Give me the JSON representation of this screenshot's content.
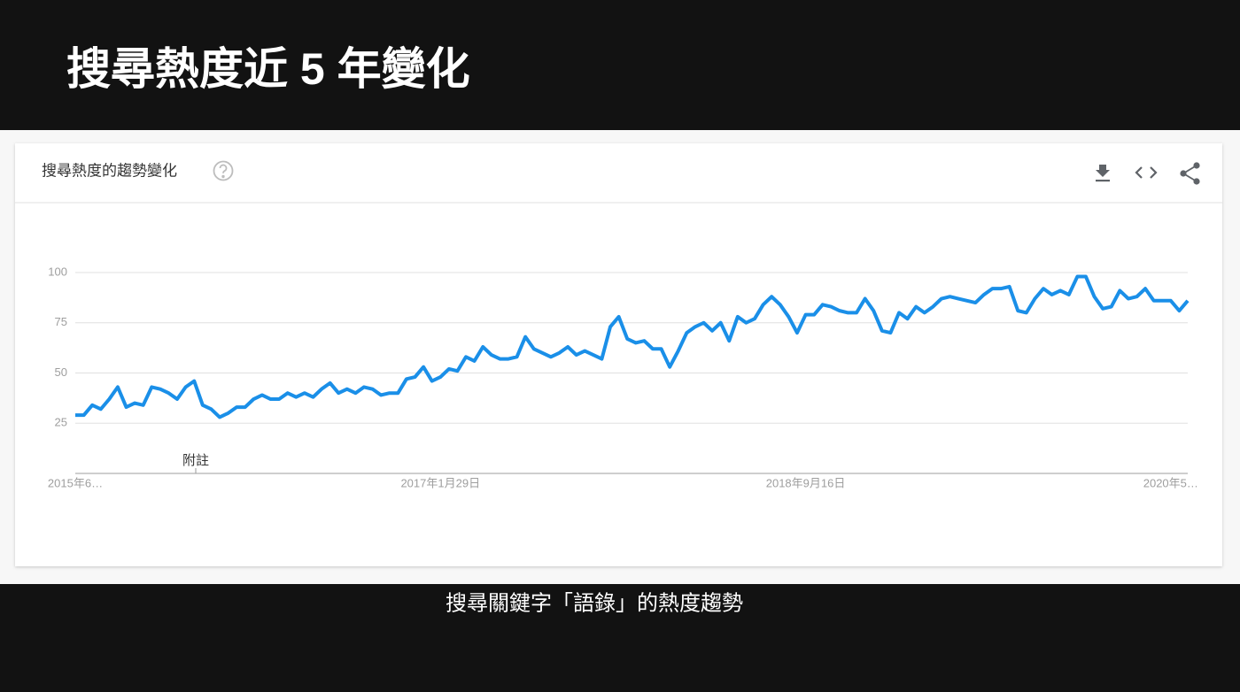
{
  "header": {
    "title": "搜尋熱度近 5 年變化"
  },
  "card": {
    "title": "搜尋熱度的趨勢變化"
  },
  "chart_data": {
    "type": "line",
    "categories": [
      "2015年6…",
      null,
      null,
      null,
      null,
      null,
      null,
      null,
      null,
      null,
      null,
      null,
      null,
      null,
      null,
      null,
      null,
      null,
      null,
      null,
      null,
      null,
      null,
      null,
      null,
      null,
      null,
      null,
      null,
      null,
      null,
      null,
      null,
      null,
      null,
      null,
      null,
      null,
      null,
      null,
      null,
      null,
      null,
      "2017年1月29日",
      null,
      null,
      null,
      null,
      null,
      null,
      null,
      null,
      null,
      null,
      null,
      null,
      null,
      null,
      null,
      null,
      null,
      null,
      null,
      null,
      null,
      null,
      null,
      null,
      null,
      null,
      null,
      null,
      null,
      null,
      null,
      null,
      null,
      null,
      null,
      null,
      null,
      null,
      null,
      null,
      null,
      null,
      "2018年9月16日",
      null,
      null,
      null,
      null,
      null,
      null,
      null,
      null,
      null,
      null,
      null,
      null,
      null,
      null,
      null,
      null,
      null,
      null,
      null,
      null,
      null,
      null,
      null,
      null,
      null,
      null,
      null,
      null,
      null,
      null,
      null,
      null,
      null,
      null,
      null,
      null,
      null,
      null,
      null,
      null,
      null,
      null,
      "2020年5…",
      null,
      null
    ],
    "values": [
      29,
      29,
      34,
      32,
      37,
      43,
      33,
      35,
      34,
      43,
      42,
      40,
      37,
      43,
      46,
      34,
      32,
      28,
      30,
      33,
      33,
      37,
      39,
      37,
      37,
      40,
      38,
      40,
      38,
      42,
      45,
      40,
      42,
      40,
      43,
      42,
      39,
      40,
      40,
      47,
      48,
      53,
      46,
      48,
      52,
      51,
      58,
      56,
      63,
      59,
      57,
      57,
      58,
      68,
      62,
      60,
      58,
      60,
      63,
      59,
      61,
      59,
      57,
      73,
      78,
      67,
      65,
      66,
      62,
      62,
      53,
      61,
      70,
      73,
      75,
      71,
      75,
      66,
      78,
      75,
      77,
      84,
      88,
      84,
      78,
      70,
      79,
      79,
      84,
      83,
      81,
      80,
      80,
      87,
      81,
      71,
      70,
      80,
      77,
      83,
      80,
      83,
      87,
      88,
      87,
      86,
      85,
      89,
      92,
      92,
      93,
      81,
      80,
      87,
      92,
      89,
      91,
      89,
      98,
      98,
      88,
      82,
      83,
      91,
      87,
      88,
      92,
      86,
      86,
      86,
      81,
      86
    ],
    "color": "#1a8fe8",
    "ylim": [
      0,
      100
    ],
    "yticks": [
      25,
      50,
      75,
      100
    ],
    "grid": true,
    "annotation": "附註"
  },
  "caption": "搜尋關鍵字「語錄」的熱度趨勢"
}
